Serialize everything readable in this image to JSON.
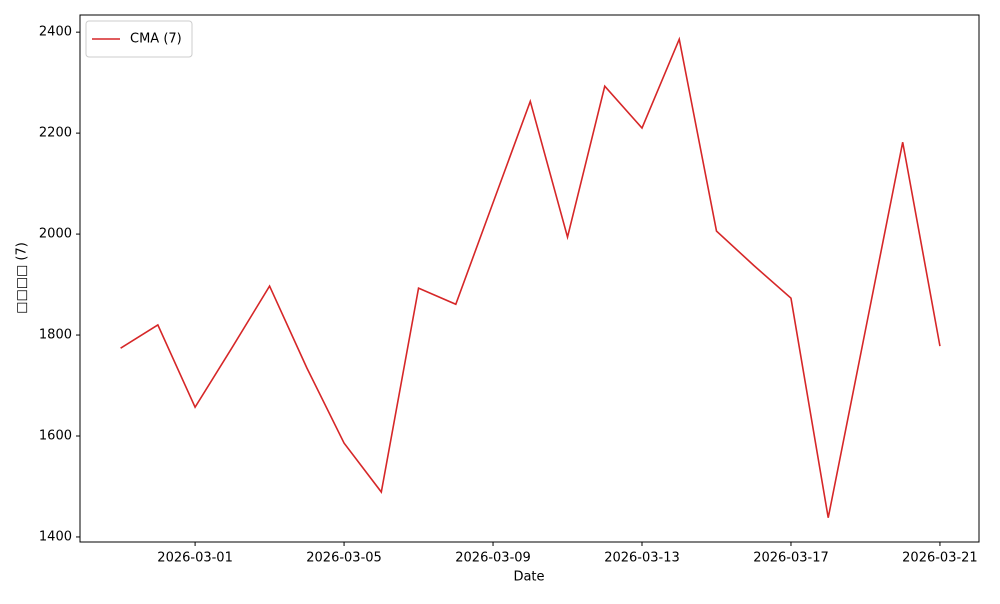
{
  "chart_data": {
    "type": "line",
    "x_label": "Date",
    "y_label": "□□□□ (7)",
    "x": [
      "2026-02-27",
      "2026-02-28",
      "2026-03-01",
      "2026-03-02",
      "2026-03-03",
      "2026-03-04",
      "2026-03-05",
      "2026-03-06",
      "2026-03-07",
      "2026-03-08",
      "2026-03-09",
      "2026-03-10",
      "2026-03-11",
      "2026-03-12",
      "2026-03-13",
      "2026-03-14",
      "2026-03-15",
      "2026-03-16",
      "2026-03-17",
      "2026-03-18",
      "2026-03-19",
      "2026-03-20",
      "2026-03-21"
    ],
    "series": [
      {
        "name": "CMA (7)",
        "color": "#d62728",
        "values": [
          1774,
          1820,
          1657,
          1776,
          1897,
          1735,
          1586,
          1489,
          1893,
          1861,
          2062,
          2263,
          1994,
          2293,
          2210,
          2386,
          2006,
          1938,
          1873,
          1438,
          1810,
          2182,
          1778
        ]
      }
    ],
    "xlim": [
      "2026-02-25T21:50",
      "2026-03-22T01:10"
    ],
    "xticks": [
      "2026-03-01",
      "2026-03-05",
      "2026-03-09",
      "2026-03-13",
      "2026-03-17",
      "2026-03-21"
    ],
    "ylim": [
      1390,
      2434
    ],
    "yticks": [
      1400,
      1600,
      1800,
      2000,
      2200,
      2400
    ],
    "legend": "upper left"
  }
}
